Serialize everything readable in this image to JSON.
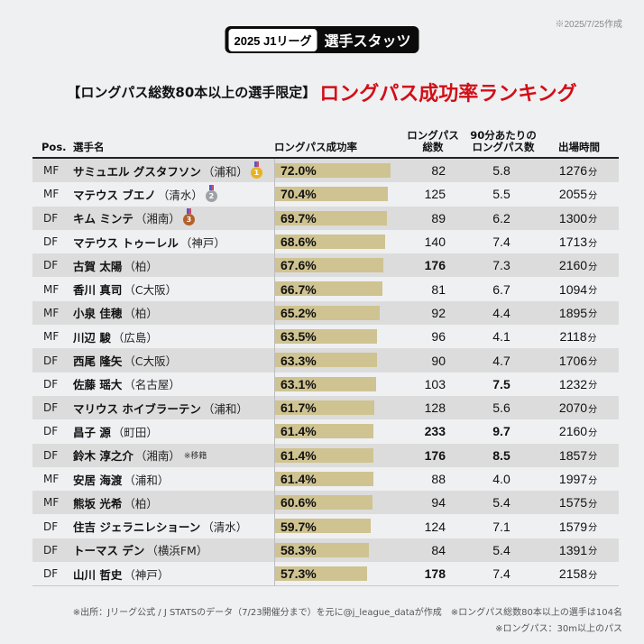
{
  "created_note": "※2025/7/25作成",
  "badge": {
    "league": "2025 J1リーグ",
    "title": "選手スタッツ"
  },
  "headline": {
    "sub": "【ロングパス総数80本以上の選手限定】",
    "main": "ロングパス成功率ランキング"
  },
  "columns": {
    "pos": "Pos.",
    "name": "選手名",
    "rate": "ロングパス成功率",
    "total_l1": "ロングパス",
    "total_l2": "総数",
    "per90_l1": "90分あたりの",
    "per90_l2": "ロングパス数",
    "minutes": "出場時間"
  },
  "minutes_unit": "分",
  "medals": [
    "1",
    "2",
    "3"
  ],
  "chart_data": {
    "type": "table",
    "title": "ロングパス成功率ランキング",
    "rate_range": [
      0,
      100
    ],
    "rows": [
      {
        "pos": "MF",
        "name": "サミュエル グスタフソン",
        "team": "（浦和）",
        "rate": "72.0%",
        "rate_value": 72.0,
        "total": "82",
        "per90": "5.8",
        "minutes": "1276",
        "medal": "gold"
      },
      {
        "pos": "MF",
        "name": "マテウス ブエノ",
        "team": "（清水）",
        "rate": "70.4%",
        "rate_value": 70.4,
        "total": "125",
        "per90": "5.5",
        "minutes": "2055",
        "medal": "silver"
      },
      {
        "pos": "DF",
        "name": "キム ミンテ",
        "team": "（湘南）",
        "rate": "69.7%",
        "rate_value": 69.7,
        "total": "89",
        "per90": "6.2",
        "minutes": "1300",
        "medal": "bronze"
      },
      {
        "pos": "DF",
        "name": "マテウス トゥーレル",
        "team": "（神戸）",
        "rate": "68.6%",
        "rate_value": 68.6,
        "total": "140",
        "per90": "7.4",
        "minutes": "1713"
      },
      {
        "pos": "DF",
        "name": "古賀 太陽",
        "team": "（柏）",
        "rate": "67.6%",
        "rate_value": 67.6,
        "total": "176",
        "total_bold": true,
        "per90": "7.3",
        "minutes": "2160"
      },
      {
        "pos": "MF",
        "name": "香川 真司",
        "team": "（C大阪）",
        "rate": "66.7%",
        "rate_value": 66.7,
        "total": "81",
        "per90": "6.7",
        "minutes": "1094"
      },
      {
        "pos": "MF",
        "name": "小泉 佳穂",
        "team": "（柏）",
        "rate": "65.2%",
        "rate_value": 65.2,
        "total": "92",
        "per90": "4.4",
        "minutes": "1895"
      },
      {
        "pos": "MF",
        "name": "川辺 駿",
        "team": "（広島）",
        "rate": "63.5%",
        "rate_value": 63.5,
        "total": "96",
        "per90": "4.1",
        "minutes": "2118"
      },
      {
        "pos": "DF",
        "name": "西尾 隆矢",
        "team": "（C大阪）",
        "rate": "63.3%",
        "rate_value": 63.3,
        "total": "90",
        "per90": "4.7",
        "minutes": "1706"
      },
      {
        "pos": "DF",
        "name": "佐藤 瑶大",
        "team": "（名古屋）",
        "rate": "63.1%",
        "rate_value": 63.1,
        "total": "103",
        "per90": "7.5",
        "per90_bold": true,
        "minutes": "1232"
      },
      {
        "pos": "DF",
        "name": "マリウス ホイブラーテン",
        "team": "（浦和）",
        "rate": "61.7%",
        "rate_value": 61.7,
        "total": "128",
        "per90": "5.6",
        "minutes": "2070"
      },
      {
        "pos": "DF",
        "name": "昌子 源",
        "team": "（町田）",
        "rate": "61.4%",
        "rate_value": 61.4,
        "total": "233",
        "total_bold": true,
        "per90": "9.7",
        "per90_bold": true,
        "minutes": "2160"
      },
      {
        "pos": "DF",
        "name": "鈴木 淳之介",
        "team": "（湘南）",
        "note": "※移籍",
        "rate": "61.4%",
        "rate_value": 61.4,
        "total": "176",
        "total_bold": true,
        "per90": "8.5",
        "per90_bold": true,
        "minutes": "1857"
      },
      {
        "pos": "MF",
        "name": "安居 海渡",
        "team": "（浦和）",
        "rate": "61.4%",
        "rate_value": 61.4,
        "total": "88",
        "per90": "4.0",
        "minutes": "1997"
      },
      {
        "pos": "MF",
        "name": "熊坂 光希",
        "team": "（柏）",
        "rate": "60.6%",
        "rate_value": 60.6,
        "total": "94",
        "per90": "5.4",
        "minutes": "1575"
      },
      {
        "pos": "DF",
        "name": "住吉 ジェラニレショーン",
        "team": "（清水）",
        "rate": "59.7%",
        "rate_value": 59.7,
        "total": "124",
        "per90": "7.1",
        "minutes": "1579"
      },
      {
        "pos": "DF",
        "name": "トーマス デン",
        "team": "（横浜FM）",
        "rate": "58.3%",
        "rate_value": 58.3,
        "total": "84",
        "per90": "5.4",
        "minutes": "1391"
      },
      {
        "pos": "DF",
        "name": "山川 哲史",
        "team": "（神戸）",
        "rate": "57.3%",
        "rate_value": 57.3,
        "total": "178",
        "total_bold": true,
        "per90": "7.4",
        "minutes": "2158"
      }
    ]
  },
  "footer": {
    "line1": "※出所：Jリーグ公式 / J STATSのデータ（7/23開催分まで）を元に@j_league_dataが作成　※ロングパス総数80本以上の選手は104名",
    "line2": "※ロングパス：30m以上のパス"
  },
  "colors": {
    "accent_red": "#d10f17",
    "bar": "#cfc391",
    "stripe": "#dcdcdc"
  }
}
